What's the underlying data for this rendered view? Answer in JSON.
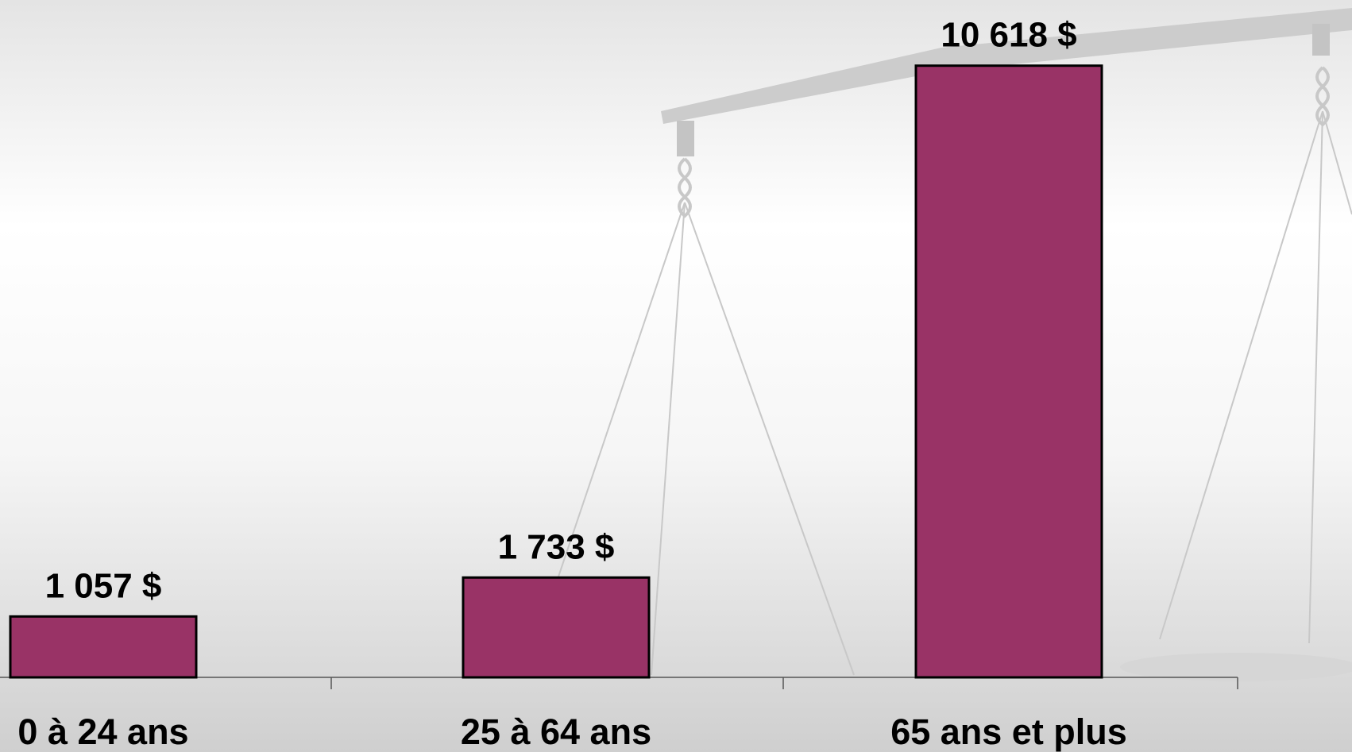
{
  "chart_data": {
    "type": "bar",
    "categories": [
      "0 à 24 ans",
      "25 à 64 ans",
      "65 ans et plus"
    ],
    "values": [
      1057,
      1733,
      10618
    ],
    "value_labels": [
      "1 057 $",
      "1 733 $",
      "10 618 $"
    ],
    "color": "#993366",
    "ylim": [
      0,
      11000
    ]
  }
}
